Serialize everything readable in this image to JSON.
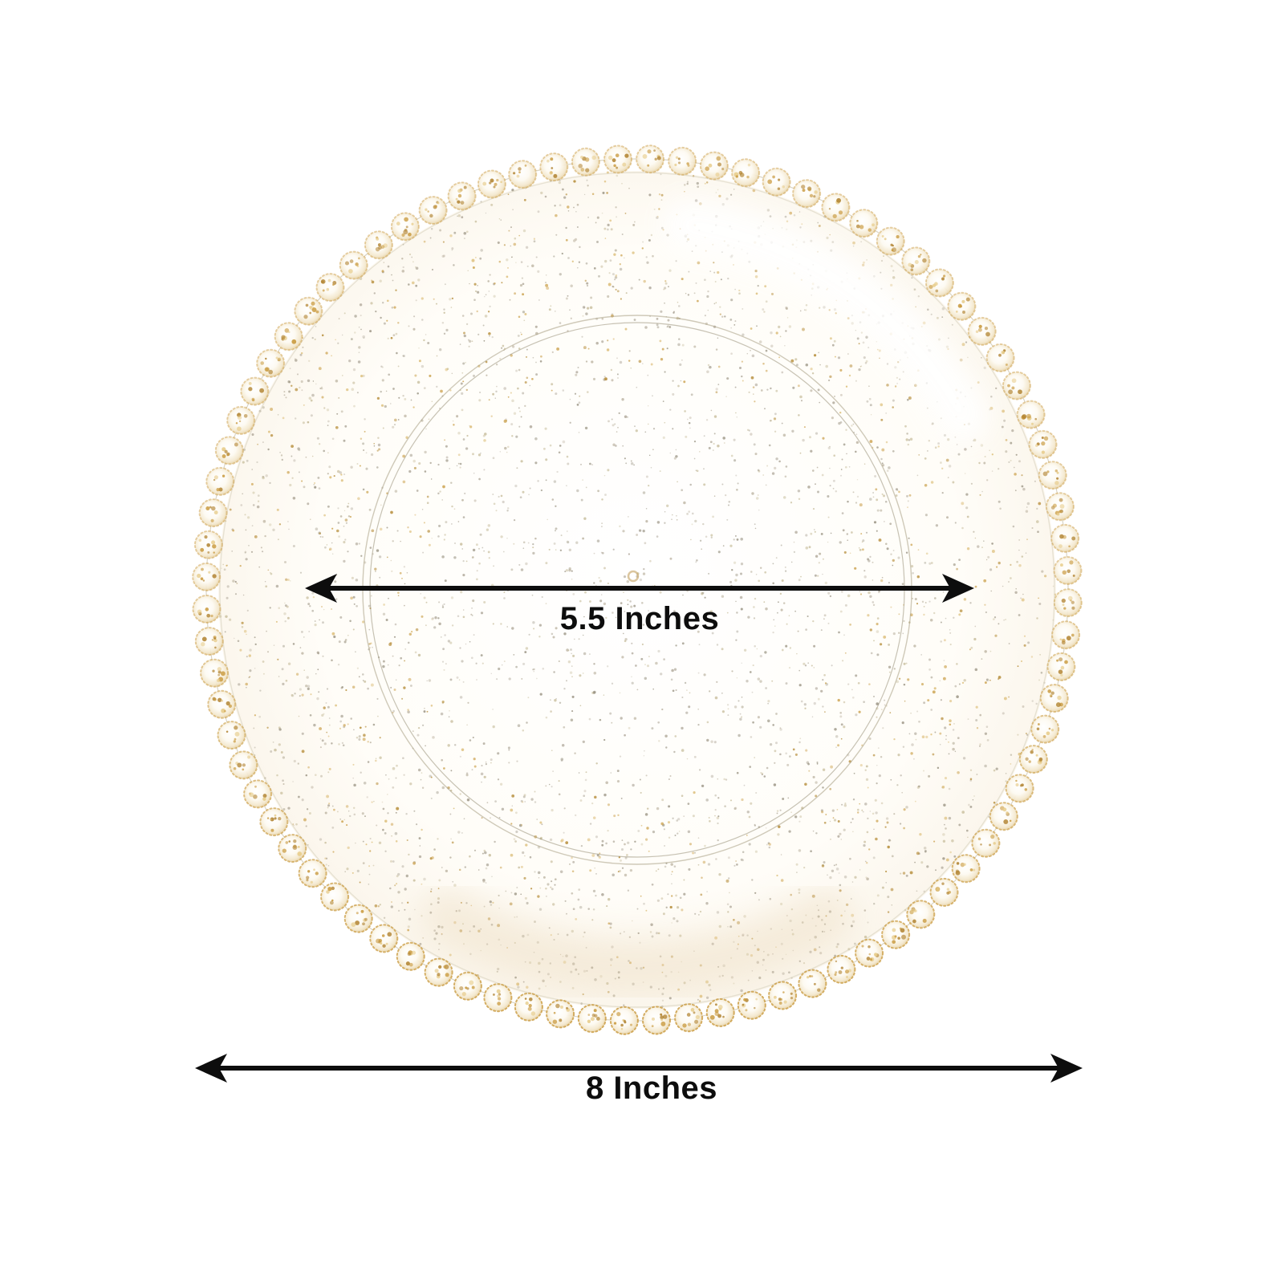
{
  "dimension_annotations": {
    "inner_diameter": {
      "label": "5.5 Inches"
    },
    "outer_diameter": {
      "label": "8 Inches"
    }
  },
  "colors": {
    "background": "#ffffff",
    "arrow": "#0d0d0d",
    "label_text": "#0d0d0d",
    "bead_gold": "#c99a3e",
    "bead_gold_light": "#e7cc8a",
    "bead_gold_deep": "#b28432",
    "glitter_neutral": [
      "#a9a192",
      "#b9b09d",
      "#948d7c",
      "#c5ba97"
    ],
    "glitter_gold": [
      "#cfa85a",
      "#ddbf7c",
      "#b8903f"
    ],
    "rim_line": "#d6cfbc",
    "inner_ring_outer": "#a89f84",
    "inner_ring_inner": "#8f876d"
  },
  "plate": {
    "bead_count": 84
  }
}
